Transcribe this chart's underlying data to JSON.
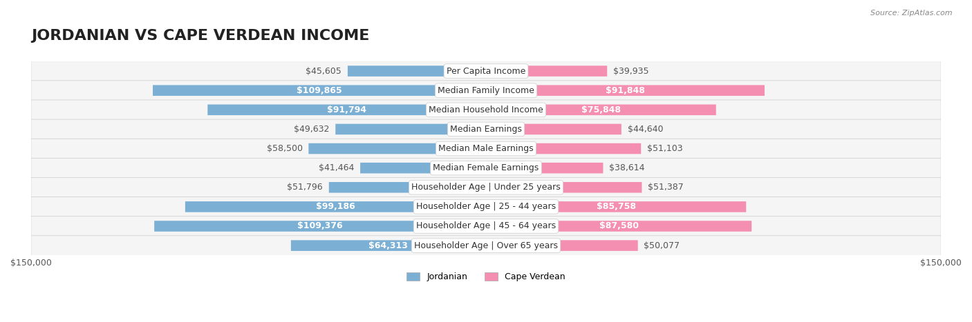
{
  "title": "JORDANIAN VS CAPE VERDEAN INCOME",
  "source": "Source: ZipAtlas.com",
  "categories": [
    "Per Capita Income",
    "Median Family Income",
    "Median Household Income",
    "Median Earnings",
    "Median Male Earnings",
    "Median Female Earnings",
    "Householder Age | Under 25 years",
    "Householder Age | 25 - 44 years",
    "Householder Age | 45 - 64 years",
    "Householder Age | Over 65 years"
  ],
  "jordanian_values": [
    45605,
    109865,
    91794,
    49632,
    58500,
    41464,
    51796,
    99186,
    109376,
    64313
  ],
  "capeverdean_values": [
    39935,
    91848,
    75848,
    44640,
    51103,
    38614,
    51387,
    85758,
    87580,
    50077
  ],
  "jordanian_labels": [
    "$45,605",
    "$109,865",
    "$91,794",
    "$49,632",
    "$58,500",
    "$41,464",
    "$51,796",
    "$99,186",
    "$109,376",
    "$64,313"
  ],
  "capeverdean_labels": [
    "$39,935",
    "$91,848",
    "$75,848",
    "$44,640",
    "$51,103",
    "$38,614",
    "$51,387",
    "$85,758",
    "$87,580",
    "$50,077"
  ],
  "jordanian_color": "#7BAFD4",
  "capeverdean_color": "#F48FB1",
  "jordanian_color_strong": "#5B9EC9",
  "capeverdean_color_strong": "#F06292",
  "max_value": 150000,
  "background_color": "#ffffff",
  "row_bg_color": "#f5f5f5",
  "legend_jordanian": "Jordanian",
  "legend_capeverdean": "Cape Verdean",
  "title_fontsize": 16,
  "label_fontsize": 9,
  "category_fontsize": 9,
  "bar_height": 0.55
}
